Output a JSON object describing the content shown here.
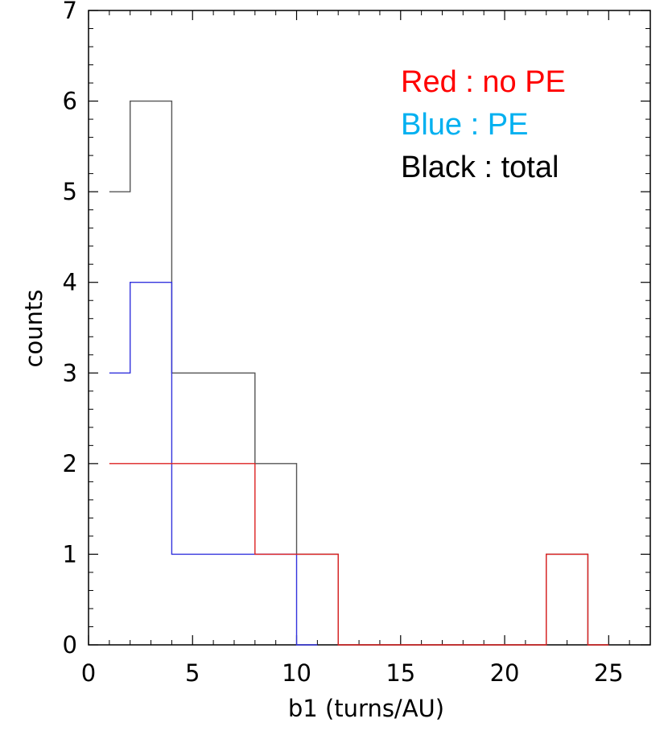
{
  "chart_data": {
    "type": "step",
    "xlabel": "b1 (turns/AU)",
    "ylabel": "counts",
    "xlim": [
      0,
      27
    ],
    "ylim": [
      0,
      7
    ],
    "x_ticks": [
      0,
      5,
      10,
      15,
      20,
      25
    ],
    "y_ticks": [
      0,
      1,
      2,
      3,
      4,
      5,
      6,
      7
    ],
    "grid": false,
    "legend_position": "top-right",
    "legend": [
      {
        "label": "Red : no PE",
        "color": "#ff0000"
      },
      {
        "label": "Blue : PE",
        "color": "#00b0f0"
      },
      {
        "label": "Black : total",
        "color": "#000000"
      }
    ],
    "series": [
      {
        "key": "total",
        "color": "#555555",
        "bins": [
          {
            "x0": 1,
            "x1": 2,
            "count": 5
          },
          {
            "x0": 2,
            "x1": 4,
            "count": 6
          },
          {
            "x0": 4,
            "x1": 8,
            "count": 3
          },
          {
            "x0": 8,
            "x1": 10,
            "count": 2
          },
          {
            "x0": 10,
            "x1": 12,
            "count": 1
          },
          {
            "x0": 12,
            "x1": 22,
            "count": 0
          },
          {
            "x0": 22,
            "x1": 24,
            "count": 1
          },
          {
            "x0": 24,
            "x1": 25,
            "count": 0
          }
        ]
      },
      {
        "key": "PE",
        "color": "#3333dd",
        "bins": [
          {
            "x0": 1,
            "x1": 2,
            "count": 3
          },
          {
            "x0": 2,
            "x1": 4,
            "count": 4
          },
          {
            "x0": 4,
            "x1": 10,
            "count": 1
          },
          {
            "x0": 10,
            "x1": 11,
            "count": 0
          }
        ]
      },
      {
        "key": "no PE",
        "color": "#dd2222",
        "bins": [
          {
            "x0": 1,
            "x1": 8,
            "count": 2
          },
          {
            "x0": 8,
            "x1": 12,
            "count": 1
          },
          {
            "x0": 12,
            "x1": 22,
            "count": 0
          },
          {
            "x0": 22,
            "x1": 24,
            "count": 1
          },
          {
            "x0": 24,
            "x1": 25,
            "count": 0
          }
        ]
      }
    ]
  }
}
